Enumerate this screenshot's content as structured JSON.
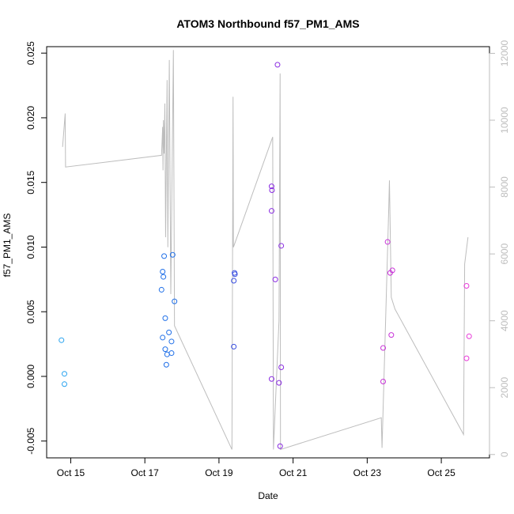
{
  "chart_data": {
    "type": "scatter",
    "title": "ATOM3 Northbound f57_PM1_AMS",
    "xlabel": "Date",
    "ylabel": "f57_PM1_AMS",
    "y2label": "",
    "x_unit": "days (October)",
    "xlim": [
      14.35,
      26.3
    ],
    "ylim": [
      -0.0063,
      0.0255
    ],
    "y2lim": [
      -100,
      12200
    ],
    "grid": false,
    "legend": "none",
    "x_ticks": [
      {
        "value": 15,
        "label": "Oct 15"
      },
      {
        "value": 17,
        "label": "Oct 17"
      },
      {
        "value": 19,
        "label": "Oct 19"
      },
      {
        "value": 21,
        "label": "Oct 21"
      },
      {
        "value": 23,
        "label": "Oct 23"
      },
      {
        "value": 25,
        "label": "Oct 25"
      }
    ],
    "y_ticks": [
      {
        "value": -0.005,
        "label": "-0.005"
      },
      {
        "value": 0.0,
        "label": "0.000"
      },
      {
        "value": 0.005,
        "label": "0.005"
      },
      {
        "value": 0.01,
        "label": "0.010"
      },
      {
        "value": 0.015,
        "label": "0.015"
      },
      {
        "value": 0.02,
        "label": "0.020"
      },
      {
        "value": 0.025,
        "label": "0.025"
      }
    ],
    "y2_ticks": [
      {
        "value": 0,
        "label": "0"
      },
      {
        "value": 2000,
        "label": "2000"
      },
      {
        "value": 4000,
        "label": "4000"
      },
      {
        "value": 6000,
        "label": "6000"
      },
      {
        "value": 8000,
        "label": "8000"
      },
      {
        "value": 10000,
        "label": "10000"
      },
      {
        "value": 12000,
        "label": "12000"
      }
    ],
    "colors": {
      "axis": "#000000",
      "secondary_axis": "#bdbdbd",
      "line": "#bdbdbd"
    },
    "series": [
      {
        "axis": "left",
        "marker": "open-circle",
        "points": [
          {
            "x": 14.75,
            "y": 0.0028,
            "color": "#29a3ef"
          },
          {
            "x": 14.83,
            "y": 0.0002,
            "color": "#29a3ef"
          },
          {
            "x": 14.83,
            "y": -0.0006,
            "color": "#29a3ef"
          },
          {
            "x": 17.45,
            "y": 0.0067,
            "color": "#1f6fe8"
          },
          {
            "x": 17.48,
            "y": 0.0081,
            "color": "#1f6fe8"
          },
          {
            "x": 17.5,
            "y": 0.0077,
            "color": "#1f6fe8"
          },
          {
            "x": 17.52,
            "y": 0.0093,
            "color": "#1f6fe8"
          },
          {
            "x": 17.48,
            "y": 0.003,
            "color": "#1f6fe8"
          },
          {
            "x": 17.55,
            "y": 0.0045,
            "color": "#1f6fe8"
          },
          {
            "x": 17.55,
            "y": 0.0021,
            "color": "#1f6fe8"
          },
          {
            "x": 17.6,
            "y": 0.0017,
            "color": "#1f6fe8"
          },
          {
            "x": 17.58,
            "y": 0.0009,
            "color": "#1f6fe8"
          },
          {
            "x": 17.65,
            "y": 0.0034,
            "color": "#1f6fe8"
          },
          {
            "x": 17.72,
            "y": 0.0027,
            "color": "#1f6fe8"
          },
          {
            "x": 17.72,
            "y": 0.0018,
            "color": "#1f6fe8"
          },
          {
            "x": 17.75,
            "y": 0.0094,
            "color": "#1f6fe8"
          },
          {
            "x": 17.8,
            "y": 0.0058,
            "color": "#1f6fe8"
          },
          {
            "x": 19.4,
            "y": 0.0074,
            "color": "#3a4fe0"
          },
          {
            "x": 19.42,
            "y": 0.008,
            "color": "#3a4fe0"
          },
          {
            "x": 19.43,
            "y": 0.0079,
            "color": "#3a4fe0"
          },
          {
            "x": 19.4,
            "y": 0.0023,
            "color": "#3a4fe0"
          },
          {
            "x": 20.42,
            "y": 0.0147,
            "color": "#8a2be2"
          },
          {
            "x": 20.43,
            "y": 0.0144,
            "color": "#8a2be2"
          },
          {
            "x": 20.42,
            "y": 0.0128,
            "color": "#8a2be2"
          },
          {
            "x": 20.52,
            "y": 0.0075,
            "color": "#8a2be2"
          },
          {
            "x": 20.58,
            "y": 0.0241,
            "color": "#8a2be2"
          },
          {
            "x": 20.68,
            "y": 0.0101,
            "color": "#8a2be2"
          },
          {
            "x": 20.68,
            "y": 0.0007,
            "color": "#8a2be2"
          },
          {
            "x": 20.42,
            "y": -0.0002,
            "color": "#8a2be2"
          },
          {
            "x": 20.62,
            "y": -0.0005,
            "color": "#8a2be2"
          },
          {
            "x": 20.65,
            "y": -0.0054,
            "color": "#8a2be2"
          },
          {
            "x": 23.55,
            "y": 0.0104,
            "color": "#c832d8"
          },
          {
            "x": 23.62,
            "y": 0.008,
            "color": "#c832d8"
          },
          {
            "x": 23.68,
            "y": 0.0082,
            "color": "#c832d8"
          },
          {
            "x": 23.43,
            "y": 0.0022,
            "color": "#c832d8"
          },
          {
            "x": 23.65,
            "y": 0.0032,
            "color": "#c832d8"
          },
          {
            "x": 23.43,
            "y": -0.0004,
            "color": "#c832d8"
          },
          {
            "x": 25.68,
            "y": 0.007,
            "color": "#e83ad8"
          },
          {
            "x": 25.75,
            "y": 0.0031,
            "color": "#e83ad8"
          },
          {
            "x": 25.68,
            "y": 0.0014,
            "color": "#e83ad8"
          }
        ]
      },
      {
        "axis": "right",
        "type": "line",
        "points": [
          {
            "x": 14.78,
            "y": 9200
          },
          {
            "x": 14.85,
            "y": 10200
          },
          {
            "x": 14.86,
            "y": 8600
          },
          {
            "x": 17.45,
            "y": 8950
          },
          {
            "x": 17.48,
            "y": 9800
          },
          {
            "x": 17.49,
            "y": 8500
          },
          {
            "x": 17.5,
            "y": 10000
          },
          {
            "x": 17.52,
            "y": 9000
          },
          {
            "x": 17.54,
            "y": 10500
          },
          {
            "x": 17.56,
            "y": 6500
          },
          {
            "x": 17.6,
            "y": 11200
          },
          {
            "x": 17.62,
            "y": 6200
          },
          {
            "x": 17.66,
            "y": 11800
          },
          {
            "x": 17.7,
            "y": 4800
          },
          {
            "x": 17.77,
            "y": 12100
          },
          {
            "x": 17.8,
            "y": 3850
          },
          {
            "x": 19.35,
            "y": 150
          },
          {
            "x": 19.38,
            "y": 10700
          },
          {
            "x": 19.39,
            "y": 6200
          },
          {
            "x": 20.45,
            "y": 9500
          },
          {
            "x": 20.47,
            "y": 150
          },
          {
            "x": 20.62,
            "y": 4000
          },
          {
            "x": 20.65,
            "y": 11400
          },
          {
            "x": 20.66,
            "y": 150
          },
          {
            "x": 23.38,
            "y": 1100
          },
          {
            "x": 23.4,
            "y": 200
          },
          {
            "x": 23.58,
            "y": 7300
          },
          {
            "x": 23.6,
            "y": 8200
          },
          {
            "x": 23.65,
            "y": 4700
          },
          {
            "x": 23.75,
            "y": 4350
          },
          {
            "x": 25.6,
            "y": 600
          },
          {
            "x": 25.63,
            "y": 5700
          },
          {
            "x": 25.72,
            "y": 6500
          }
        ]
      }
    ]
  }
}
